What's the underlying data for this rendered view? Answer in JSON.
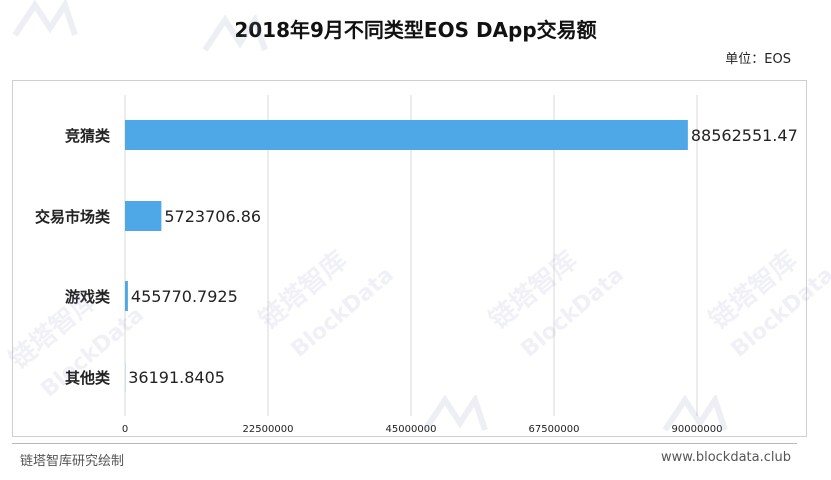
{
  "title": "2018年9月不同类型EOS DApp交易额",
  "unit_label": "单位：EOS",
  "footer": {
    "source": "链塔智库研究绘制",
    "website": "www.blockdata.club"
  },
  "watermark": {
    "cn": "链塔智库",
    "en": "BlockData"
  },
  "colors": {
    "bar": "#4ea7e6",
    "grid": "#d9d9d9"
  },
  "chart_data": {
    "type": "bar",
    "orientation": "horizontal",
    "categories": [
      "竞猜类",
      "交易市场类",
      "游戏类",
      "其他类"
    ],
    "values": [
      88562551.47,
      5723706.86,
      455770.7925,
      36191.8405
    ],
    "value_labels": [
      "88562551.47",
      "5723706.86",
      "455770.7925",
      "36191.8405"
    ],
    "xlim": [
      0,
      90000000
    ],
    "xticks": [
      0,
      22500000,
      45000000,
      67500000,
      90000000
    ],
    "xtick_labels": [
      "0",
      "22500000",
      "45000000",
      "67500000",
      "90000000"
    ],
    "grid": true,
    "legend": "none"
  }
}
